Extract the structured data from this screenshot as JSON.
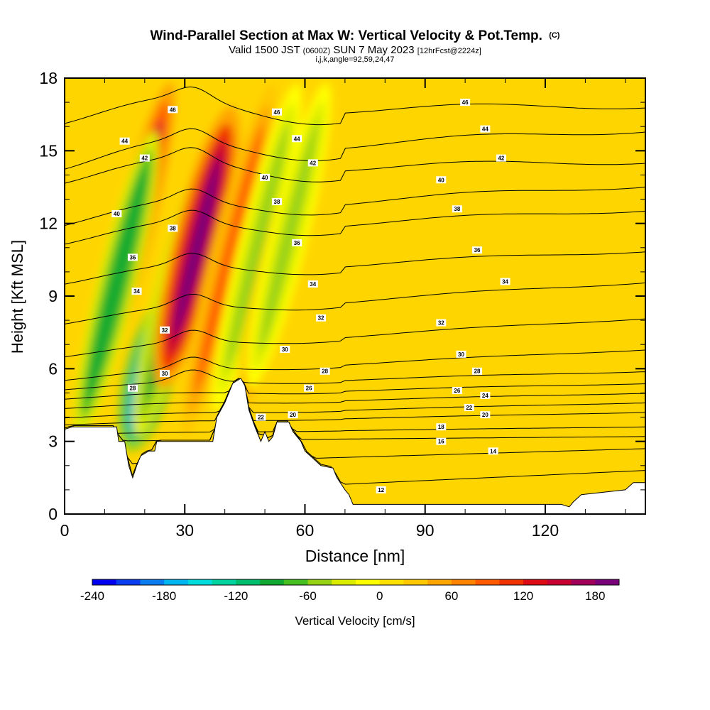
{
  "chart_data": {
    "type": "heatmap",
    "title": "Wind-Parallel Section at Max W: Vertical Velocity & Pot.Temp.",
    "title_mark": "(C)",
    "subtitle_parts": [
      "Valid 1500 JST",
      "(0600Z)",
      "SUN 7 May 2023",
      "[12hrFcst@2224z]"
    ],
    "subtitle2": "i,j,k,angle=92,59,24,47",
    "xlabel": "Distance [nm]",
    "ylabel": "Height [Kft MSL]",
    "xlim": [
      0,
      145
    ],
    "ylim": [
      0,
      18
    ],
    "x_ticks": [
      "0",
      "30",
      "60",
      "90",
      "120"
    ],
    "y_ticks": [
      "0",
      "3",
      "6",
      "9",
      "12",
      "15",
      "18"
    ],
    "colorbar": {
      "label": "Vertical Velocity [cm/s]",
      "range": [
        -240,
        200
      ],
      "tick_labels": [
        "-240",
        "-180",
        "-120",
        "-60",
        "0",
        "60",
        "120",
        "180"
      ],
      "colors": [
        "#0000f0",
        "#0a3cf0",
        "#0a7cf0",
        "#00b4f0",
        "#00dcdc",
        "#00d2a0",
        "#00be6e",
        "#10a830",
        "#46c020",
        "#96d214",
        "#dcec00",
        "#ffff00",
        "#ffe000",
        "#ffc800",
        "#ffa500",
        "#ff8200",
        "#ff5a00",
        "#f03200",
        "#dc0a14",
        "#c80032",
        "#a0005a",
        "#780078"
      ]
    },
    "vertical_velocity_features": [
      {
        "x": 17,
        "y_range": [
          5,
          18
        ],
        "peak": 140
      },
      {
        "x": 13,
        "y_range": [
          3,
          16
        ],
        "peak": -100
      },
      {
        "x": 21,
        "y_range": [
          2.5,
          9
        ],
        "peak": -230
      },
      {
        "x": 25,
        "y_range": [
          5,
          10
        ],
        "peak": 80
      },
      {
        "x": 27,
        "y_range": [
          3,
          15
        ],
        "peak": -90
      },
      {
        "x": 33,
        "y_range": [
          5,
          17
        ],
        "peak": 200
      },
      {
        "x": 41,
        "y_range": [
          3,
          18
        ],
        "peak": 80
      },
      {
        "x": 48,
        "y_range": [
          4,
          18
        ],
        "peak": -60
      },
      {
        "x": 53,
        "y_range": [
          4,
          16
        ],
        "peak": 70
      },
      {
        "x": 56,
        "y_range": [
          5,
          18
        ],
        "peak": -50
      }
    ],
    "theta_contours": [
      {
        "value": "12",
        "left_y": 0.7,
        "right_y": 1.8,
        "labels": [
          [
            79,
            1.0
          ]
        ]
      },
      {
        "value": "14",
        "left_y": 2.0,
        "right_y": 2.7,
        "labels": [
          [
            107,
            2.6
          ]
        ]
      },
      {
        "value": "16",
        "left_y": 3.0,
        "right_y": 3.2,
        "labels": [
          [
            94,
            3.0
          ]
        ]
      },
      {
        "value": "18",
        "left_y": 3.3,
        "right_y": 3.6,
        "labels": [
          [
            94,
            3.6
          ]
        ]
      },
      {
        "value": "20",
        "left_y": 3.7,
        "right_y": 4.2,
        "labels": [
          [
            57,
            4.1
          ],
          [
            105,
            4.1
          ]
        ]
      },
      {
        "value": "22",
        "left_y": 4.0,
        "right_y": 4.6,
        "labels": [
          [
            49,
            4.0
          ],
          [
            101,
            4.4
          ]
        ]
      },
      {
        "value": "24",
        "left_y": 4.4,
        "right_y": 5.0,
        "labels": [
          [
            105,
            4.9
          ]
        ]
      },
      {
        "value": "26",
        "left_y": 4.8,
        "right_y": 5.4,
        "labels": [
          [
            61,
            5.2
          ],
          [
            98,
            5.1
          ]
        ]
      },
      {
        "value": "28",
        "left_y": 5.2,
        "right_y": 5.9,
        "labels": [
          [
            17,
            5.2
          ],
          [
            65,
            5.9
          ],
          [
            103,
            5.9
          ]
        ]
      },
      {
        "value": "30",
        "left_y": 5.6,
        "right_y": 6.8,
        "labels": [
          [
            25,
            5.8
          ],
          [
            55,
            6.8
          ],
          [
            99,
            6.6
          ]
        ]
      },
      {
        "value": "32",
        "left_y": 6.6,
        "right_y": 8.1,
        "labels": [
          [
            25,
            7.6
          ],
          [
            64,
            8.1
          ],
          [
            94,
            7.9
          ]
        ]
      },
      {
        "value": "34",
        "left_y": 8.0,
        "right_y": 9.6,
        "labels": [
          [
            18,
            9.2
          ],
          [
            62,
            9.5
          ],
          [
            110,
            9.6
          ]
        ]
      },
      {
        "value": "36",
        "left_y": 9.7,
        "right_y": 10.9,
        "labels": [
          [
            17,
            10.6
          ],
          [
            58,
            11.2
          ],
          [
            103,
            10.9
          ]
        ]
      },
      {
        "value": "38",
        "left_y": 11.4,
        "right_y": 12.6,
        "labels": [
          [
            27,
            11.8
          ],
          [
            53,
            12.9
          ],
          [
            98,
            12.6
          ]
        ]
      },
      {
        "value": "40",
        "left_y": 12.2,
        "right_y": 13.6,
        "labels": [
          [
            13,
            12.4
          ],
          [
            50,
            13.9
          ],
          [
            94,
            13.8
          ]
        ]
      },
      {
        "value": "42",
        "left_y": 14.0,
        "right_y": 14.6,
        "labels": [
          [
            20,
            14.7
          ],
          [
            62,
            14.5
          ],
          [
            109,
            14.7
          ]
        ]
      },
      {
        "value": "44",
        "left_y": 14.6,
        "right_y": 15.9,
        "labels": [
          [
            15,
            15.4
          ],
          [
            58,
            15.5
          ],
          [
            105,
            15.9
          ]
        ]
      },
      {
        "value": "46",
        "left_y": 16.5,
        "right_y": 16.9,
        "labels": [
          [
            27,
            16.7
          ],
          [
            53,
            16.6
          ],
          [
            100,
            17.0
          ]
        ]
      }
    ],
    "terrain_height": [
      {
        "x": 0,
        "y": 3.5
      },
      {
        "x": 2,
        "y": 3.6
      },
      {
        "x": 13,
        "y": 3.6
      },
      {
        "x": 13.5,
        "y": 3.0
      },
      {
        "x": 15,
        "y": 3.0
      },
      {
        "x": 16,
        "y": 2.0
      },
      {
        "x": 17,
        "y": 1.5
      },
      {
        "x": 18,
        "y": 2.0
      },
      {
        "x": 19,
        "y": 2.4
      },
      {
        "x": 21,
        "y": 2.6
      },
      {
        "x": 22.5,
        "y": 2.6
      },
      {
        "x": 23,
        "y": 3.0
      },
      {
        "x": 26,
        "y": 3.0
      },
      {
        "x": 28,
        "y": 3.0
      },
      {
        "x": 30,
        "y": 3.0
      },
      {
        "x": 32,
        "y": 3.0
      },
      {
        "x": 34,
        "y": 3.0
      },
      {
        "x": 37,
        "y": 3.0
      },
      {
        "x": 38,
        "y": 4.0
      },
      {
        "x": 40,
        "y": 4.6
      },
      {
        "x": 41,
        "y": 5.0
      },
      {
        "x": 42,
        "y": 5.4
      },
      {
        "x": 44,
        "y": 5.6
      },
      {
        "x": 45,
        "y": 5.3
      },
      {
        "x": 46,
        "y": 4.3
      },
      {
        "x": 47.5,
        "y": 3.6
      },
      {
        "x": 49,
        "y": 3.0
      },
      {
        "x": 50,
        "y": 3.4
      },
      {
        "x": 51,
        "y": 3.0
      },
      {
        "x": 52,
        "y": 3.2
      },
      {
        "x": 53,
        "y": 3.8
      },
      {
        "x": 56,
        "y": 3.8
      },
      {
        "x": 57,
        "y": 3.4
      },
      {
        "x": 59,
        "y": 3.0
      },
      {
        "x": 60,
        "y": 2.6
      },
      {
        "x": 62,
        "y": 2.3
      },
      {
        "x": 64,
        "y": 2.0
      },
      {
        "x": 67,
        "y": 1.9
      },
      {
        "x": 68,
        "y": 1.5
      },
      {
        "x": 70,
        "y": 1.0
      },
      {
        "x": 71,
        "y": 0.8
      },
      {
        "x": 72,
        "y": 0.4
      },
      {
        "x": 80,
        "y": 0.4
      },
      {
        "x": 95,
        "y": 0.4
      },
      {
        "x": 110,
        "y": 0.4
      },
      {
        "x": 118,
        "y": 0.4
      },
      {
        "x": 124,
        "y": 0.4
      },
      {
        "x": 126,
        "y": 0.3
      },
      {
        "x": 127,
        "y": 0.5
      },
      {
        "x": 129,
        "y": 0.8
      },
      {
        "x": 140,
        "y": 1.0
      },
      {
        "x": 142,
        "y": 1.3
      },
      {
        "x": 145,
        "y": 1.3
      }
    ]
  }
}
